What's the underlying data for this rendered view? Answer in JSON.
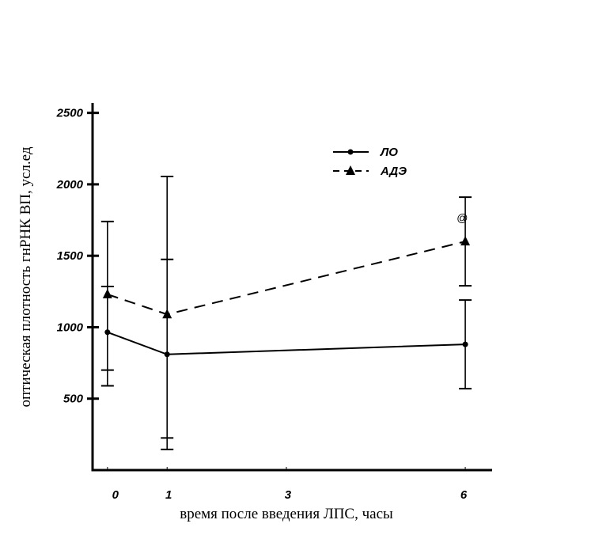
{
  "chart_data": {
    "type": "line",
    "xlabel": "время после введения ЛПС, часы",
    "ylabel": "оптическая плотность гнРНК ВП, усл.ед",
    "x_ticks": [
      0,
      1,
      3,
      6
    ],
    "x_tick_labels": [
      "0",
      "1",
      "3",
      "6"
    ],
    "y_ticks": [
      500,
      1000,
      1500,
      2000,
      2500
    ],
    "y_tick_labels": [
      "500",
      "1000",
      "1500",
      "2000",
      "2500"
    ],
    "xlim": [
      -0.25,
      6.45
    ],
    "ylim": [
      0,
      2570
    ],
    "legend_position": "top-right",
    "series": [
      {
        "name": "ЛО",
        "style": "solid",
        "marker": "circle",
        "x": [
          0,
          1,
          6
        ],
        "y": [
          965,
          810,
          880
        ],
        "err_low": [
          590,
          145,
          570
        ],
        "err_high": [
          1740,
          2055,
          1190
        ],
        "inner_caps": [
          [
            700,
            1285
          ],
          [
            225,
            1475
          ],
          []
        ]
      },
      {
        "name": "АДЭ",
        "style": "dashed",
        "marker": "triangle",
        "x": [
          0,
          1,
          6
        ],
        "y": [
          1230,
          1090,
          1600
        ],
        "err_low": [],
        "err_high": [],
        "inner_caps": [],
        "extra_bar": {
          "x": 6,
          "low": 1290,
          "high": 1910
        }
      }
    ],
    "annotations": [
      {
        "text": "@",
        "x": 5.95,
        "y": 1740
      }
    ],
    "colors": {
      "line": "#000000",
      "background": "#ffffff"
    }
  }
}
